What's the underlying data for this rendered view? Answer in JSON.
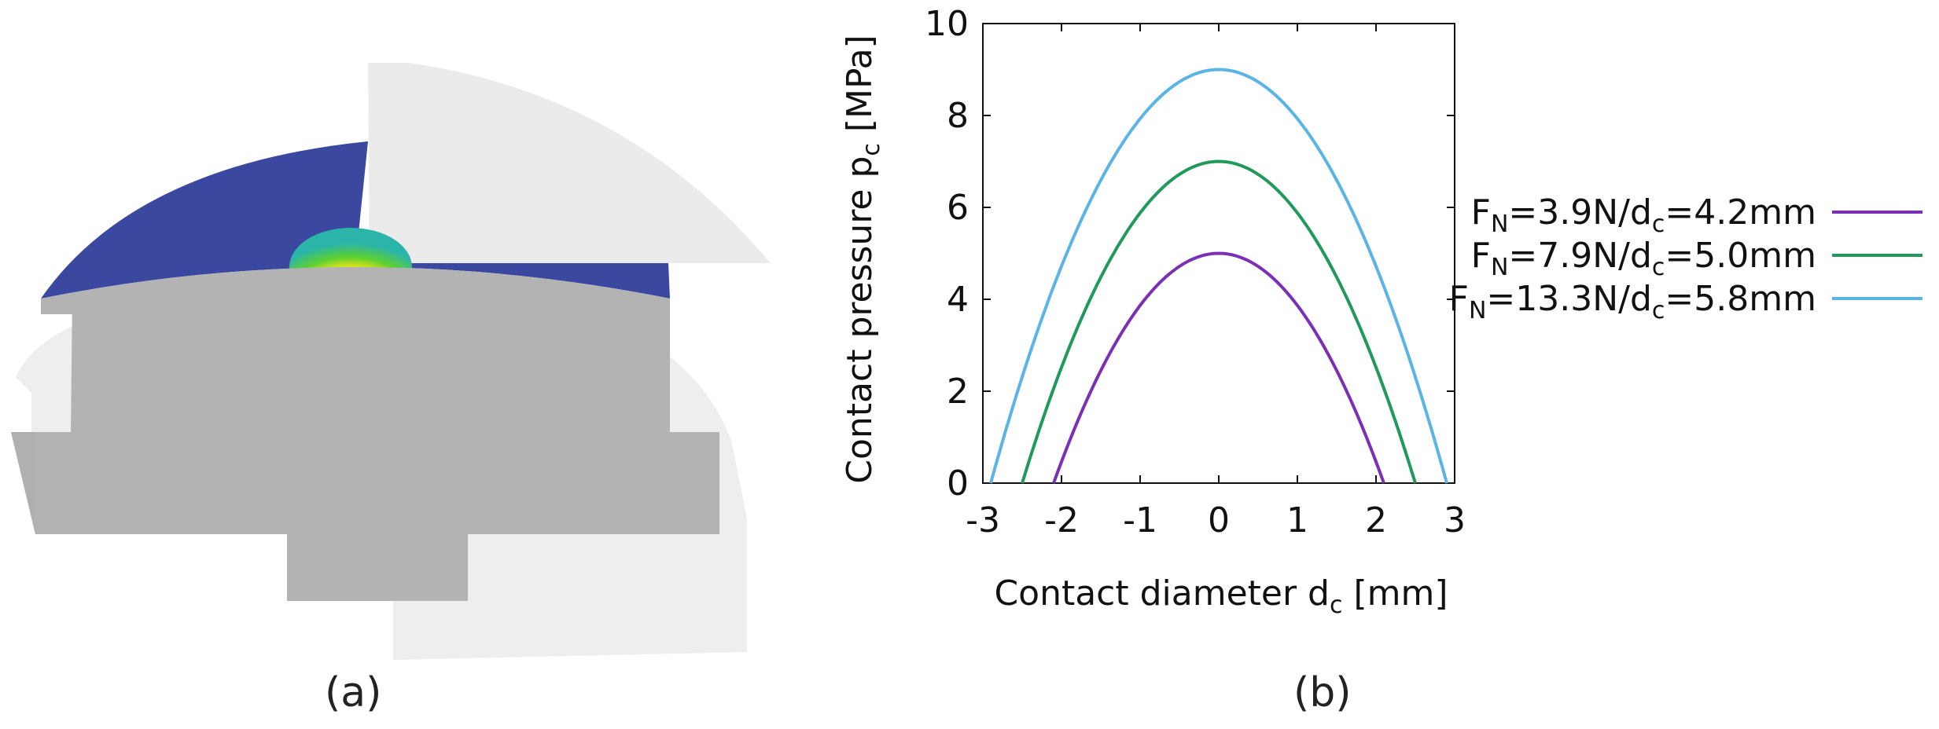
{
  "panels": {
    "a": {
      "caption": "(a)"
    },
    "b": {
      "caption": "(b)"
    }
  },
  "colors": {
    "blue_surface": "#3a48a0",
    "gray_body": "#b3b3b3",
    "ghost_body": "#ececec",
    "series_1": "#7b2fb5",
    "series_2": "#1f9a5a",
    "series_3": "#5ab4e6"
  },
  "chart_data": {
    "type": "line",
    "xlabel_main": "Contact diameter d",
    "xlabel_sub": "c",
    "xlabel_unit": " [mm]",
    "ylabel_main": "Contact pressure p",
    "ylabel_sub": "c",
    "ylabel_unit": " [MPa]",
    "xlim": [
      -3,
      3
    ],
    "ylim": [
      0,
      10
    ],
    "xticks": [
      "-3",
      "-2",
      "-1",
      "0",
      "1",
      "2",
      "3"
    ],
    "yticks": [
      "0",
      "2",
      "4",
      "6",
      "8",
      "10"
    ],
    "grid": false,
    "legend_position": "right",
    "series": [
      {
        "name": "FN=3.9N/dc=4.2mm",
        "label_parts": {
          "F": "F",
          "Fsub": "N",
          "mid": "=3.9N/d",
          "dsub": "c",
          "end": "=4.2mm"
        },
        "color": "#7b2fb5",
        "x": [
          -2.1,
          -1.8,
          -1.5,
          -1.2,
          -0.9,
          -0.6,
          -0.3,
          0,
          0.3,
          0.6,
          0.9,
          1.2,
          1.5,
          1.8,
          2.1
        ],
        "y": [
          0,
          1.33,
          2.45,
          3.37,
          4.08,
          4.59,
          4.9,
          5.0,
          4.9,
          4.59,
          4.08,
          3.37,
          2.45,
          1.33,
          0
        ]
      },
      {
        "name": "FN=7.9N/dc=5.0mm",
        "label_parts": {
          "F": "F",
          "Fsub": "N",
          "mid": "=7.9N/d",
          "dsub": "c",
          "end": "=5.0mm"
        },
        "color": "#1f9a5a",
        "x": [
          -2.5,
          -2.1,
          -1.7,
          -1.3,
          -0.9,
          -0.5,
          0,
          0.5,
          0.9,
          1.3,
          1.7,
          2.1,
          2.5
        ],
        "y": [
          0,
          2.07,
          3.76,
          5.11,
          6.09,
          6.72,
          7.0,
          6.72,
          6.09,
          5.11,
          3.76,
          2.07,
          0
        ]
      },
      {
        "name": "FN=13.3N/dc=5.8mm",
        "label_parts": {
          "F": "F",
          "Fsub": "N",
          "mid": "=13.3N/d",
          "dsub": "c",
          "end": "=5.8mm"
        },
        "color": "#5ab4e6",
        "x": [
          -2.9,
          -2.5,
          -2.0,
          -1.5,
          -1.0,
          -0.5,
          0,
          0.5,
          1.0,
          1.5,
          2.0,
          2.5,
          2.9
        ],
        "y": [
          0,
          2.31,
          4.72,
          6.59,
          7.93,
          8.73,
          9.0,
          8.73,
          7.93,
          6.59,
          4.72,
          2.31,
          0
        ]
      }
    ]
  }
}
